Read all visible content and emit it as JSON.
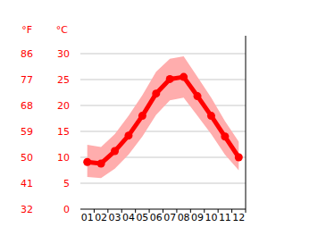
{
  "chart_data": {
    "type": "line",
    "categories": [
      "01",
      "02",
      "03",
      "04",
      "05",
      "06",
      "07",
      "08",
      "09",
      "10",
      "11",
      "12"
    ],
    "values": [
      9.1,
      8.8,
      11.2,
      14.2,
      18,
      22.3,
      25.1,
      25.5,
      21.8,
      18,
      14,
      10
    ],
    "low": [
      6.2,
      6,
      7.8,
      10.5,
      14,
      18.2,
      21,
      21.5,
      18,
      14.5,
      10.5,
      7.5
    ],
    "high": [
      12.4,
      12,
      14.5,
      18,
      22,
      26.5,
      29,
      29.5,
      25.5,
      21.5,
      17,
      13
    ],
    "color": "#ff0000",
    "marker": "circle",
    "y_label": "°C",
    "y2_label": "°F",
    "ylim": [
      0,
      30
    ],
    "yticks": [
      0,
      5,
      10,
      15,
      20,
      25,
      30
    ],
    "y2lim": [
      32,
      86
    ],
    "y2ticks": [
      32,
      41,
      50,
      59,
      68,
      77,
      86
    ],
    "grid": true
  }
}
